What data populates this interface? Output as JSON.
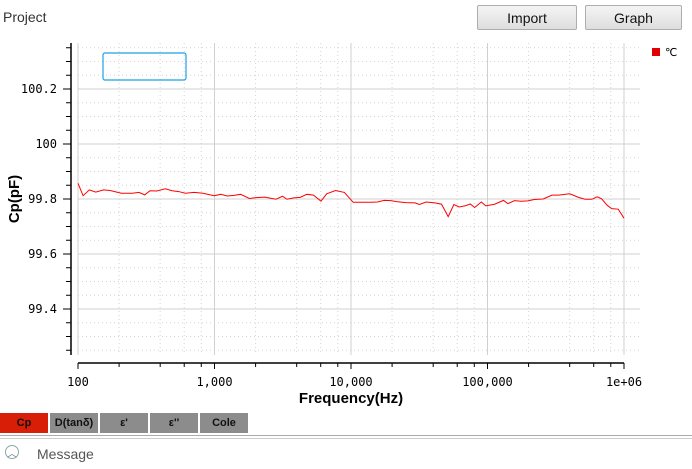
{
  "header": {
    "project_label": "Project",
    "import_label": "Import",
    "graph_label": "Graph"
  },
  "tabs": [
    {
      "label": "Cp",
      "active": true
    },
    {
      "label": "D(tanδ)"
    },
    {
      "label": "ε'"
    },
    {
      "label": "ε''"
    },
    {
      "label": "Cole"
    }
  ],
  "message": {
    "label": "Message",
    "icon": "chevron-up-circle-icon"
  },
  "chart_data": {
    "type": "line",
    "title": "",
    "xlabel": "Frequency(Hz)",
    "ylabel": "Cp(pF)",
    "xscale": "log",
    "xlim": [
      100,
      1000000
    ],
    "ylim": [
      99.23,
      100.36
    ],
    "x_ticks": [
      "100",
      "1,000",
      "10,000",
      "100,000",
      "1e+06"
    ],
    "y_ticks": [
      "99.4",
      "99.6",
      "99.8",
      "100",
      "100.2"
    ],
    "grid": true,
    "legend_position": "top-right",
    "series": [
      {
        "name": "℃",
        "color": "#ff0000",
        "x": [
          100,
          109,
          121,
          135,
          154,
          172,
          208,
          250,
          280,
          308,
          337,
          377,
          437,
          489,
          547,
          611,
          710,
          824,
          993,
          1110,
          1241,
          1388,
          1552,
          1801,
          2015,
          2339,
          2818,
          3150,
          3396,
          3797,
          4246,
          4747,
          5308,
          6025,
          6637,
          7707,
          8940,
          10380,
          12050,
          13990,
          15640,
          17490,
          19550,
          21860,
          25360,
          29440,
          31750,
          35490,
          41210,
          46080,
          51520,
          56750,
          62080,
          69410,
          74770,
          80540,
          90120,
          97040,
          112700,
          130900,
          140900,
          157700,
          176300,
          197200,
          220400,
          255900,
          296700,
          331800,
          399900,
          464300,
          518900,
          580800,
          635300,
          684100,
          753800,
          811500,
          907800,
          1000000
        ],
        "y": [
          99.857,
          99.812,
          99.833,
          99.825,
          99.833,
          99.831,
          99.821,
          99.821,
          99.824,
          99.815,
          99.83,
          99.829,
          99.837,
          99.83,
          99.827,
          99.821,
          99.824,
          99.821,
          99.812,
          99.817,
          99.811,
          99.813,
          99.817,
          99.802,
          99.805,
          99.807,
          99.799,
          99.81,
          99.799,
          99.804,
          99.806,
          99.817,
          99.814,
          99.792,
          99.819,
          99.831,
          99.824,
          99.788,
          99.788,
          99.788,
          99.789,
          99.795,
          99.794,
          99.79,
          99.787,
          99.786,
          99.78,
          99.789,
          99.786,
          99.781,
          99.736,
          99.78,
          99.771,
          99.776,
          99.782,
          99.769,
          99.789,
          99.775,
          99.781,
          99.795,
          99.783,
          99.794,
          99.792,
          99.793,
          99.798,
          99.8,
          99.814,
          99.814,
          99.819,
          99.806,
          99.799,
          99.799,
          99.808,
          99.801,
          99.777,
          99.765,
          99.763,
          99.73
        ]
      }
    ]
  }
}
